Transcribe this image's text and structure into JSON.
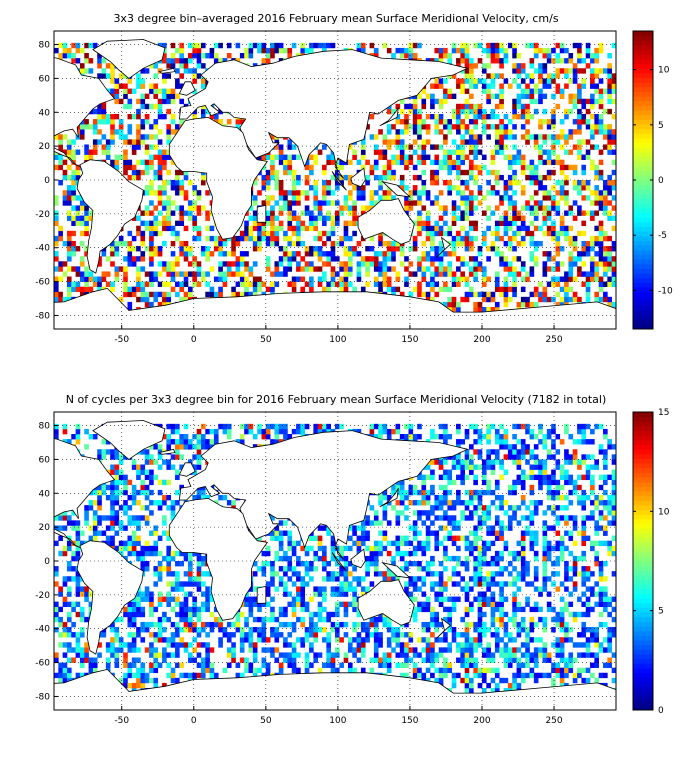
{
  "chart_data": [
    {
      "type": "heatmap",
      "title": "3x3 degree bin–averaged 2016 February mean Surface Meridional Velocity, cm/s",
      "xlabel": "",
      "ylabel": "",
      "xlim": [
        -97,
        293
      ],
      "ylim": [
        -88,
        88
      ],
      "xticks": [
        -50,
        0,
        50,
        100,
        150,
        200,
        250
      ],
      "yticks": [
        -80,
        -60,
        -40,
        -20,
        0,
        20,
        40,
        60,
        80
      ],
      "grid": true,
      "bin_size_deg": 3,
      "colorbar": {
        "min": -13.5,
        "max": 13.5,
        "ticks": [
          -10,
          -5,
          0,
          5,
          10
        ],
        "colormap": "jet"
      }
    },
    {
      "type": "heatmap",
      "title": "N of cycles per 3x3 degree bin for 2016 February mean Surface Meridional Velocity (7182 in total)",
      "xlabel": "",
      "ylabel": "",
      "xlim": [
        -97,
        293
      ],
      "ylim": [
        -88,
        88
      ],
      "xticks": [
        -50,
        0,
        50,
        100,
        150,
        200,
        250
      ],
      "yticks": [
        -80,
        -60,
        -40,
        -20,
        0,
        20,
        40,
        60,
        80
      ],
      "grid": true,
      "bin_size_deg": 3,
      "colorbar": {
        "min": 0,
        "max": 15,
        "ticks": [
          0,
          5,
          10,
          15
        ],
        "colormap": "jet"
      }
    }
  ]
}
